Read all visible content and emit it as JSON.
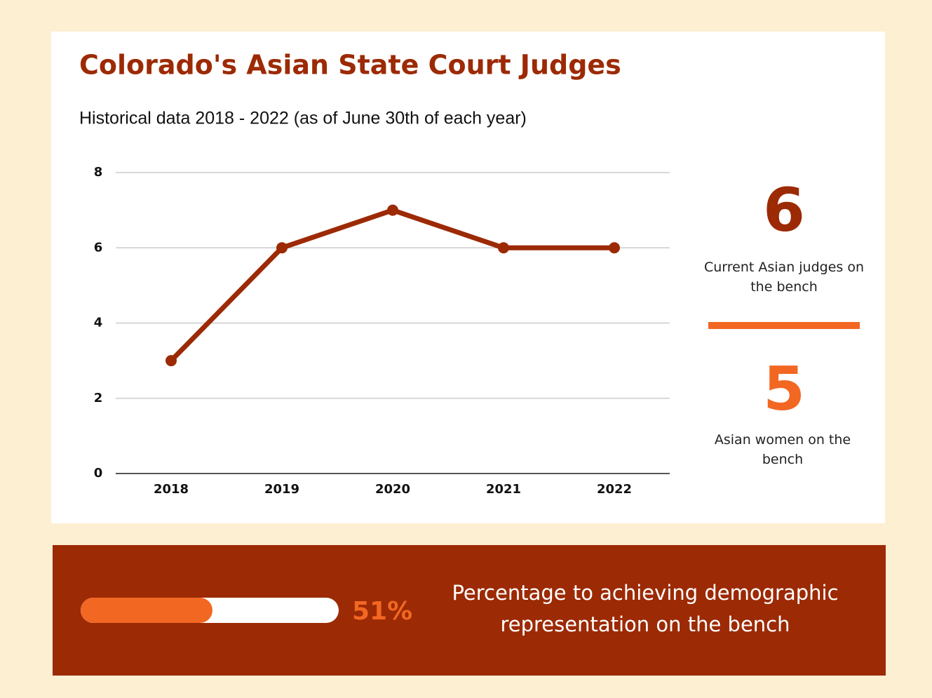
{
  "chart_data": {
    "type": "line",
    "title": "Colorado's Asian State Court Judges",
    "subtitle": "Historical data 2018 - 2022 (as of June 30th of each year)",
    "categories": [
      "2018",
      "2019",
      "2020",
      "2021",
      "2022"
    ],
    "values": [
      3,
      6,
      7,
      6,
      6
    ],
    "color": "#9c2a05",
    "ylim": [
      0,
      8
    ],
    "yticks": [
      0,
      2,
      4,
      6,
      8
    ],
    "grid": true
  },
  "stats": [
    {
      "value": 6,
      "label": "Current Asian judges on the bench",
      "color": "#9c2a05"
    },
    {
      "value": 5,
      "label": "Asian women on the bench",
      "color": "#f26722"
    }
  ],
  "progress": {
    "value": 51,
    "value_label": "51%",
    "xlim": [
      0,
      100
    ],
    "color": "#f26722",
    "label": "Percentage to achieving demographic representation on the bench"
  }
}
